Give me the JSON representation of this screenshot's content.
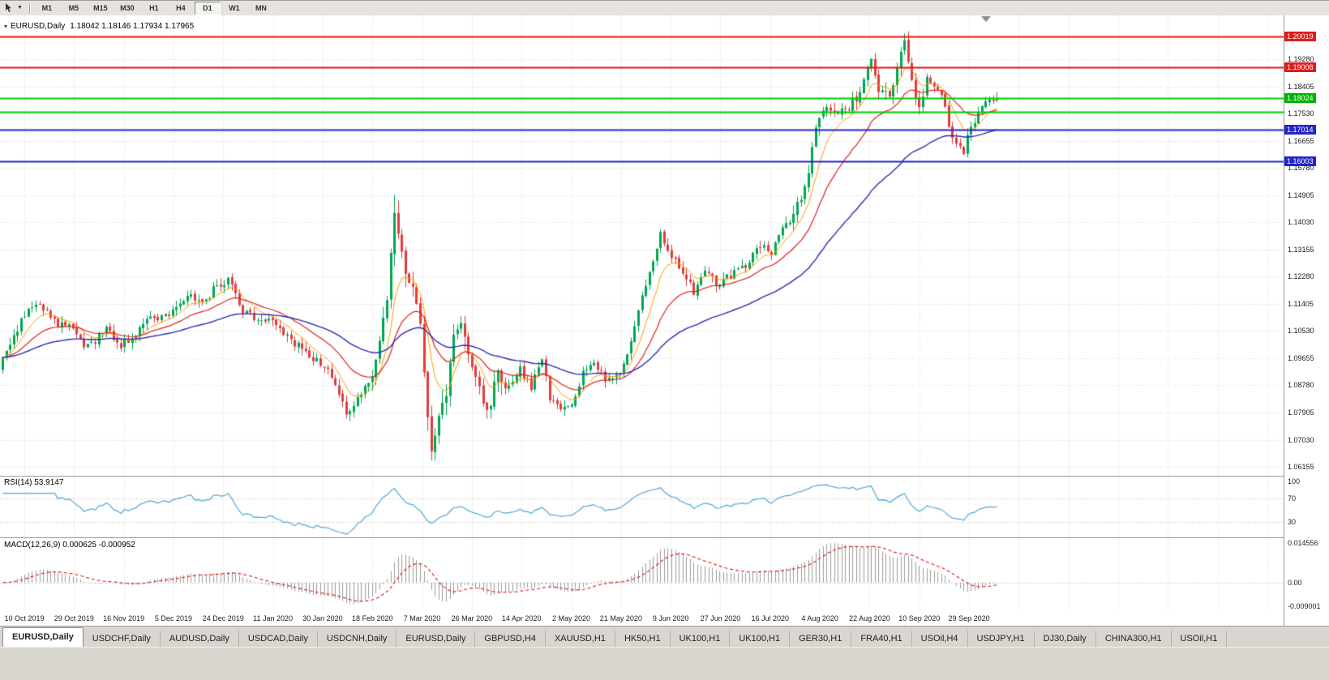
{
  "toolbar": {
    "timeframes": [
      "M1",
      "M5",
      "M15",
      "M30",
      "H1",
      "H4",
      "D1",
      "W1",
      "MN"
    ],
    "active_timeframe": "D1"
  },
  "chart": {
    "title": {
      "symbol": "EURUSD,Daily",
      "ohlc": "1.18042 1.18146 1.17934 1.17965"
    },
    "price_axis": {
      "ticks": [
        {
          "label": "1.19280",
          "price": 1.1928
        },
        {
          "label": "1.18405",
          "price": 1.18405
        },
        {
          "label": "1.17530",
          "price": 1.1753
        },
        {
          "label": "1.16655",
          "price": 1.16655
        },
        {
          "label": "1.15780",
          "price": 1.1578
        },
        {
          "label": "1.14905",
          "price": 1.14905
        },
        {
          "label": "1.14030",
          "price": 1.1403
        },
        {
          "label": "1.13155",
          "price": 1.13155
        },
        {
          "label": "1.12280",
          "price": 1.1228
        },
        {
          "label": "1.11405",
          "price": 1.11405
        },
        {
          "label": "1.10530",
          "price": 1.1053
        },
        {
          "label": "1.09655",
          "price": 1.09655
        },
        {
          "label": "1.08780",
          "price": 1.0878
        },
        {
          "label": "1.07905",
          "price": 1.07905
        },
        {
          "label": "1.07030",
          "price": 1.0703
        },
        {
          "label": "1.06155",
          "price": 1.06155
        }
      ],
      "badges": [
        {
          "label": "1.20019",
          "price": 1.20019,
          "bg": "#e01b1b"
        },
        {
          "label": "1.19008",
          "price": 1.19008,
          "bg": "#e01b1b"
        },
        {
          "label": "1.18024",
          "price": 1.18024,
          "bg": "#00b300"
        },
        {
          "label": "1.17014",
          "price": 1.17014,
          "bg": "#2424cc"
        },
        {
          "label": "1.16003",
          "price": 1.16003,
          "bg": "#2424cc"
        }
      ]
    },
    "date_labels": [
      "10 Oct 2019",
      "29 Oct 2019",
      "16 Nov 2019",
      "5 Dec 2019",
      "24 Dec 2019",
      "11 Jan 2020",
      "30 Jan 2020",
      "18 Feb 2020",
      "7 Mar 2020",
      "26 Mar 2020",
      "14 Apr 2020",
      "2 May 2020",
      "21 May 2020",
      "9 Jun 2020",
      "27 Jun 2020",
      "16 Jul 2020",
      "4 Aug 2020",
      "22 Aug 2020",
      "10 Sep 2020",
      "29 Sep 2020"
    ],
    "indicators": {
      "rsi": {
        "label": "RSI(14) 53.9147",
        "axis_labels": [
          {
            "label": "100",
            "value": 100
          },
          {
            "label": "70",
            "value": 70
          },
          {
            "label": "30",
            "value": 30
          }
        ],
        "level_lines": [
          70,
          30
        ],
        "color": "#4fa8d8",
        "scale": [
          5,
          107
        ]
      },
      "macd": {
        "label": "MACD(12,26,9) 0.000625 -0.000952",
        "axis_labels": [
          {
            "label": "0.014556",
            "value": 0.014556
          },
          {
            "label": "0.00",
            "value": 0
          },
          {
            "label": "-0.009001",
            "value": -0.009001
          }
        ],
        "scale": [
          -0.0095,
          0.015
        ],
        "hist_color": "#9c9c9c",
        "signal_color": "#dd1111"
      }
    }
  },
  "chart_data": {
    "type": "candlestick",
    "symbol": "EURUSD",
    "timeframe": "Daily",
    "ohlc_display": {
      "open": 1.18042,
      "high": 1.18146,
      "low": 1.17934,
      "close": 1.17965
    },
    "rsi_value": 53.9147,
    "macd_value": 0.000625,
    "macd_signal": -0.000952,
    "support_resistance": [
      {
        "price": 1.20019,
        "color": "#e81212",
        "width": 2
      },
      {
        "price": 1.19008,
        "color": "#e81212",
        "width": 2
      },
      {
        "price": 1.18024,
        "color": "#00cc00",
        "width": 2
      },
      {
        "price": 1.1759,
        "color": "#00cc00",
        "width": 2
      },
      {
        "price": 1.17014,
        "color": "#2222cc",
        "width": 2
      },
      {
        "price": 1.16003,
        "color": "#2222cc",
        "width": 2
      }
    ],
    "price_top": 1.2069,
    "price_bottom": 1.0587,
    "n": 270,
    "seed": 42,
    "up_color": "#00a651",
    "down_color": "#e23b3b",
    "ma_lines": [
      {
        "period": 8,
        "color": "#ff9d00",
        "width": 1
      },
      {
        "period": 21,
        "color": "#e02020",
        "width": 1.2
      },
      {
        "period": 55,
        "color": "#2b2bb4",
        "width": 1.4
      }
    ],
    "price_keypoints": [
      [
        0,
        1.0975
      ],
      [
        3,
        1.104
      ],
      [
        6,
        1.1105
      ],
      [
        9,
        1.114
      ],
      [
        12,
        1.112
      ],
      [
        15,
        1.1065
      ],
      [
        18,
        1.1075
      ],
      [
        22,
        1.1
      ],
      [
        25,
        1.1015
      ],
      [
        28,
        1.107
      ],
      [
        31,
        1.1005
      ],
      [
        34,
        1.102
      ],
      [
        38,
        1.1075
      ],
      [
        42,
        1.11
      ],
      [
        46,
        1.111
      ],
      [
        50,
        1.117
      ],
      [
        54,
        1.114
      ],
      [
        58,
        1.12
      ],
      [
        61,
        1.1215
      ],
      [
        65,
        1.112
      ],
      [
        69,
        1.109
      ],
      [
        73,
        1.11
      ],
      [
        78,
        1.102
      ],
      [
        83,
        1.0975
      ],
      [
        88,
        1.0935
      ],
      [
        93,
        1.079
      ],
      [
        97,
        1.084
      ],
      [
        101,
        1.095
      ],
      [
        104,
        1.113
      ],
      [
        106,
        1.144
      ],
      [
        108,
        1.129
      ],
      [
        111,
        1.118
      ],
      [
        113,
        1.1085
      ],
      [
        116,
        1.0655
      ],
      [
        118,
        1.077
      ],
      [
        120,
        1.0865
      ],
      [
        122,
        1.1025
      ],
      [
        124,
        1.1095
      ],
      [
        126,
        1.0985
      ],
      [
        129,
        1.0855
      ],
      [
        131,
        1.0795
      ],
      [
        134,
        1.0905
      ],
      [
        137,
        1.0865
      ],
      [
        140,
        1.093
      ],
      [
        143,
        1.087
      ],
      [
        146,
        1.097
      ],
      [
        148,
        1.084
      ],
      [
        151,
        1.0805
      ],
      [
        154,
        1.081
      ],
      [
        157,
        1.092
      ],
      [
        160,
        1.095
      ],
      [
        163,
        1.0895
      ],
      [
        166,
        1.09
      ],
      [
        169,
        1.098
      ],
      [
        172,
        1.111
      ],
      [
        175,
        1.125
      ],
      [
        178,
        1.137
      ],
      [
        181,
        1.1295
      ],
      [
        184,
        1.1245
      ],
      [
        187,
        1.1175
      ],
      [
        190,
        1.1245
      ],
      [
        193,
        1.1205
      ],
      [
        196,
        1.1225
      ],
      [
        199,
        1.1245
      ],
      [
        202,
        1.128
      ],
      [
        205,
        1.133
      ],
      [
        208,
        1.13
      ],
      [
        211,
        1.138
      ],
      [
        214,
        1.143
      ],
      [
        217,
        1.1505
      ],
      [
        220,
        1.171
      ],
      [
        223,
        1.177
      ],
      [
        226,
        1.1755
      ],
      [
        229,
        1.178
      ],
      [
        232,
        1.181
      ],
      [
        235,
        1.193
      ],
      [
        237,
        1.183
      ],
      [
        240,
        1.181
      ],
      [
        242,
        1.1895
      ],
      [
        244,
        1.199
      ],
      [
        246,
        1.185
      ],
      [
        248,
        1.178
      ],
      [
        250,
        1.186
      ],
      [
        252,
        1.1845
      ],
      [
        254,
        1.1815
      ],
      [
        256,
        1.172
      ],
      [
        258,
        1.1655
      ],
      [
        260,
        1.163
      ],
      [
        262,
        1.172
      ],
      [
        264,
        1.1745
      ],
      [
        266,
        1.1785
      ],
      [
        269,
        1.1795
      ]
    ],
    "wick_overrides": {
      "106": {
        "high": 1.1492
      },
      "116": {
        "low": 1.0636
      },
      "244": {
        "high": 1.2011
      }
    },
    "high_vol": [
      [
        100,
        135,
        2.0
      ],
      [
        214,
        252,
        1.3
      ]
    ]
  },
  "tabs": [
    {
      "label": "EURUSD,Daily",
      "active": true
    },
    {
      "label": "USDCHF,Daily",
      "active": false
    },
    {
      "label": "AUDUSD,Daily",
      "active": false
    },
    {
      "label": "USDCAD,Daily",
      "active": false
    },
    {
      "label": "USDCNH,Daily",
      "active": false
    },
    {
      "label": "EURUSD,Daily",
      "active": false
    },
    {
      "label": "GBPUSD,H4",
      "active": false
    },
    {
      "label": "XAUUSD,H1",
      "active": false
    },
    {
      "label": "HK50,H1",
      "active": false
    },
    {
      "label": "UK100,H1",
      "active": false
    },
    {
      "label": "UK100,H1",
      "active": false
    },
    {
      "label": "GER30,H1",
      "active": false
    },
    {
      "label": "FRA40,H1",
      "active": false
    },
    {
      "label": "USOil,H4",
      "active": false
    },
    {
      "label": "USDJPY,H1",
      "active": false
    },
    {
      "label": "DJ30,Daily",
      "active": false
    },
    {
      "label": "CHINA300,H1",
      "active": false
    },
    {
      "label": "USOil,H1",
      "active": false
    }
  ]
}
